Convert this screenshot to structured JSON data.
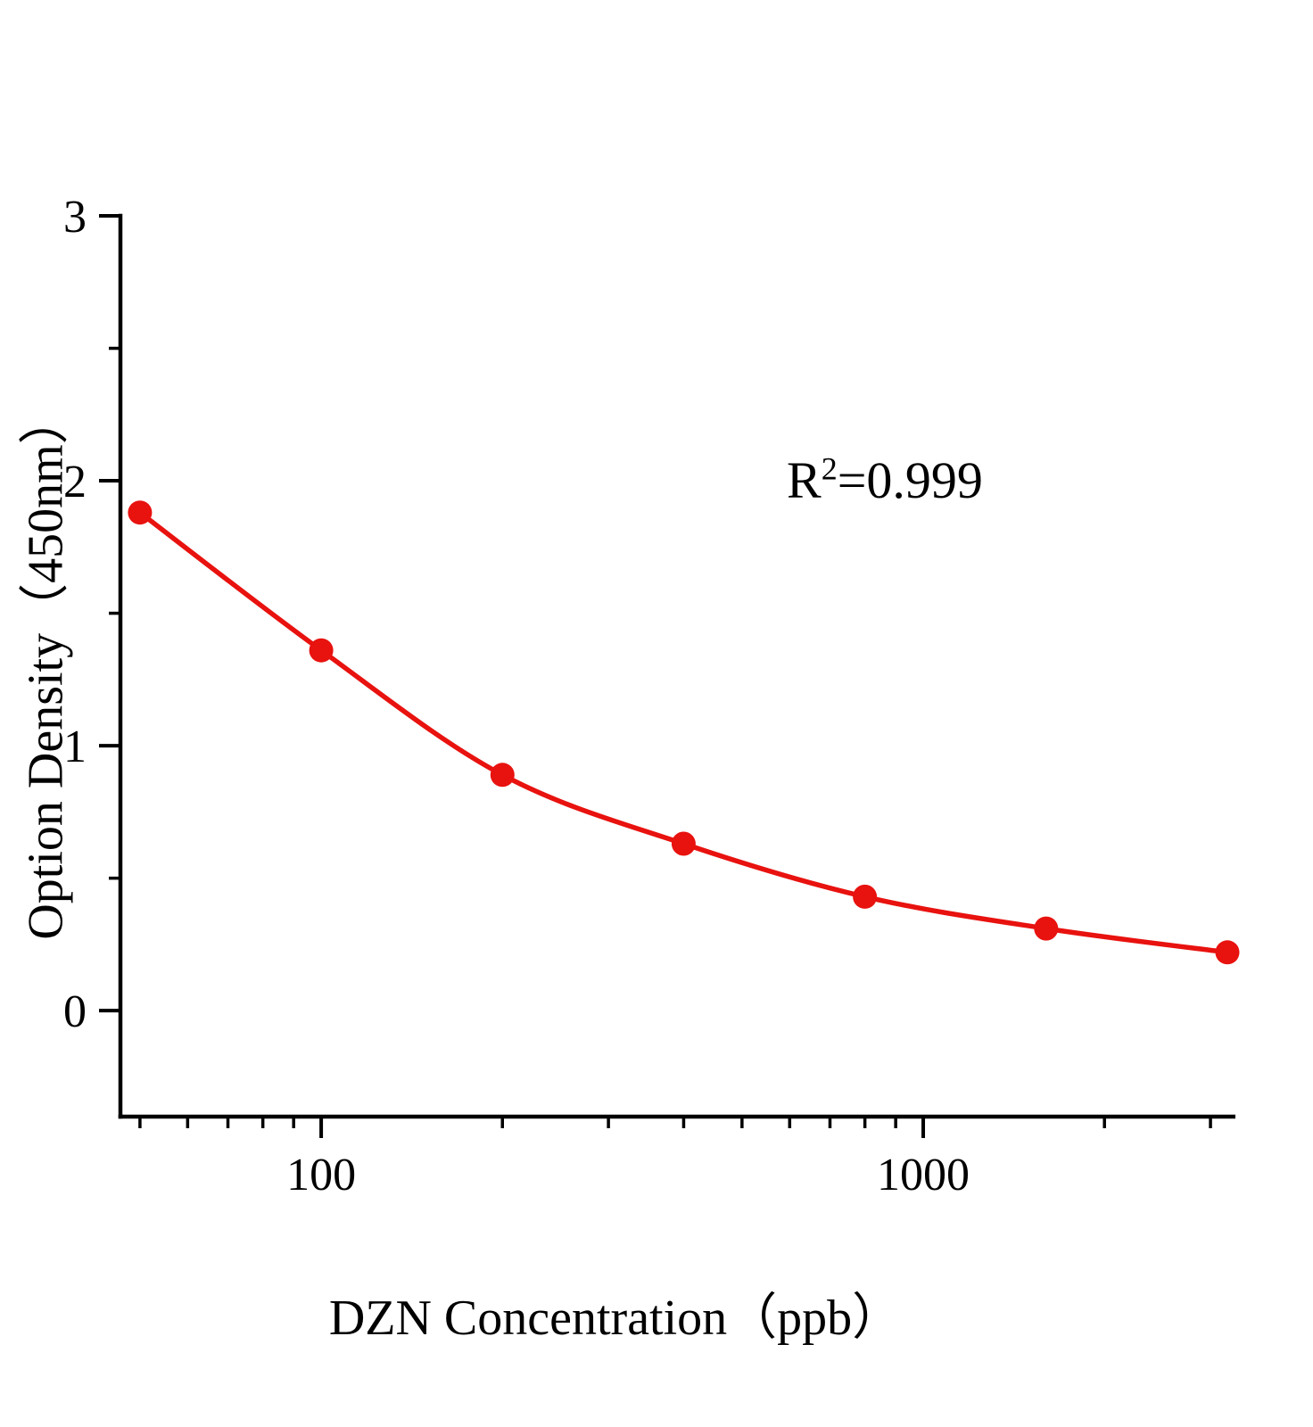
{
  "chart_data": {
    "type": "scatter",
    "x": [
      50,
      100,
      200,
      400,
      800,
      1600,
      3200
    ],
    "y": [
      1.88,
      1.36,
      0.89,
      0.63,
      0.43,
      0.31,
      0.22
    ],
    "title": "",
    "xlabel": "DZN Concentration（ppb）",
    "ylabel": "Option Density（450nm）",
    "x_scale": "log",
    "xlim": [
      46.4,
      3300
    ],
    "ylim": [
      -0.4,
      3
    ],
    "x_ticks": [
      100,
      1000
    ],
    "x_tick_labels": [
      "100",
      "1000"
    ],
    "x_minor_ticks": [
      50,
      60,
      70,
      80,
      90,
      200,
      300,
      400,
      500,
      600,
      700,
      800,
      900,
      2000,
      3000
    ],
    "y_ticks": [
      0,
      1,
      2,
      3
    ],
    "y_tick_labels": [
      "0",
      "1",
      "2",
      "3"
    ],
    "y_minor_ticks": [
      0.5,
      1.5,
      2.5
    ],
    "grid": false,
    "legend": "none",
    "line_color": "#e8120f",
    "marker_color": "#e8120f",
    "axis_color": "#000000",
    "annotation": {
      "base": "R",
      "sup": "2",
      "rest": "=0.999"
    }
  }
}
